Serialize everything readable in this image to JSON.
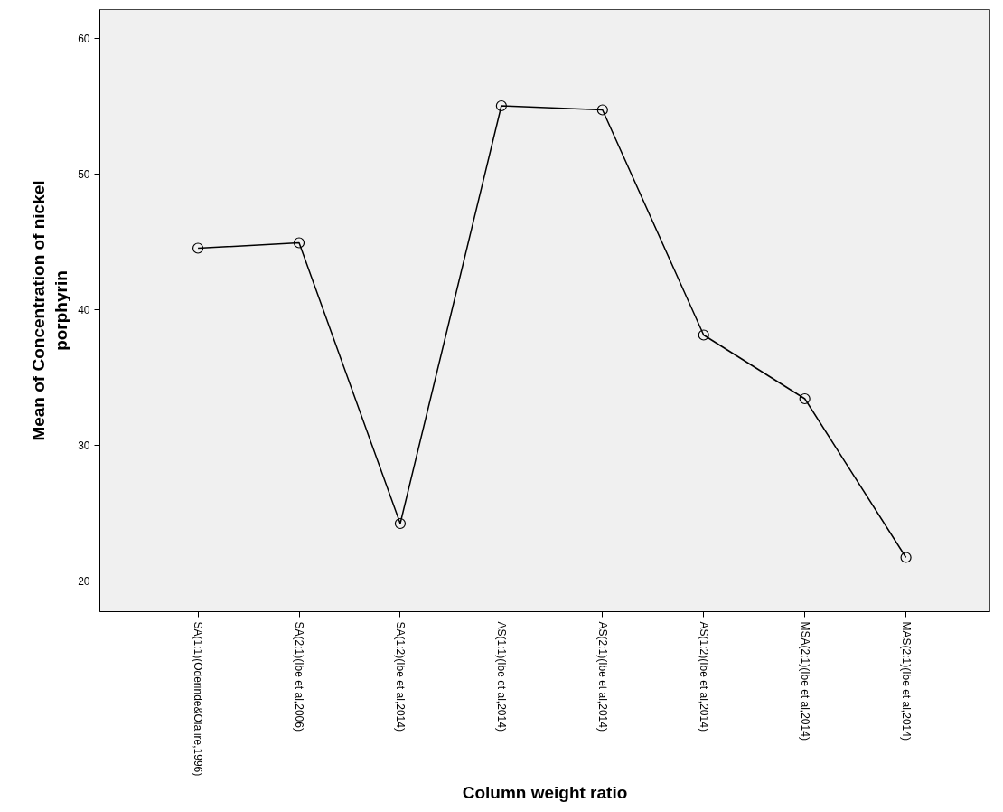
{
  "chart_data": {
    "type": "line",
    "xlabel": "Column weight ratio",
    "ylabel": "Mean of Concentration of nickel\nporphyrin",
    "categories": [
      "SA(1:1)(Oderinde&Olajire,1996)",
      "SA(2:1)(Ibe et al,2006)",
      "SA(1:2)(Ibe et al,2014)",
      "AS(1:1)(Ibe et al,2014)",
      "AS(2:1)(Ibe et al,2014)",
      "AS(1:2)(Ibe et al,2014)",
      "MSA(2:1)(Ibe et al,2014)",
      "MAS(2:1)(Ibe et al,2014)"
    ],
    "series": [
      {
        "color": "#000000",
        "values": [
          44.5,
          44.9,
          24.2,
          55.0,
          54.7,
          38.1,
          33.4,
          21.7
        ]
      }
    ],
    "marker": "circle",
    "line_style": "solid",
    "ylim": [
      17.7,
      62.1
    ],
    "yticks": [
      20,
      30,
      40,
      50,
      60
    ]
  }
}
